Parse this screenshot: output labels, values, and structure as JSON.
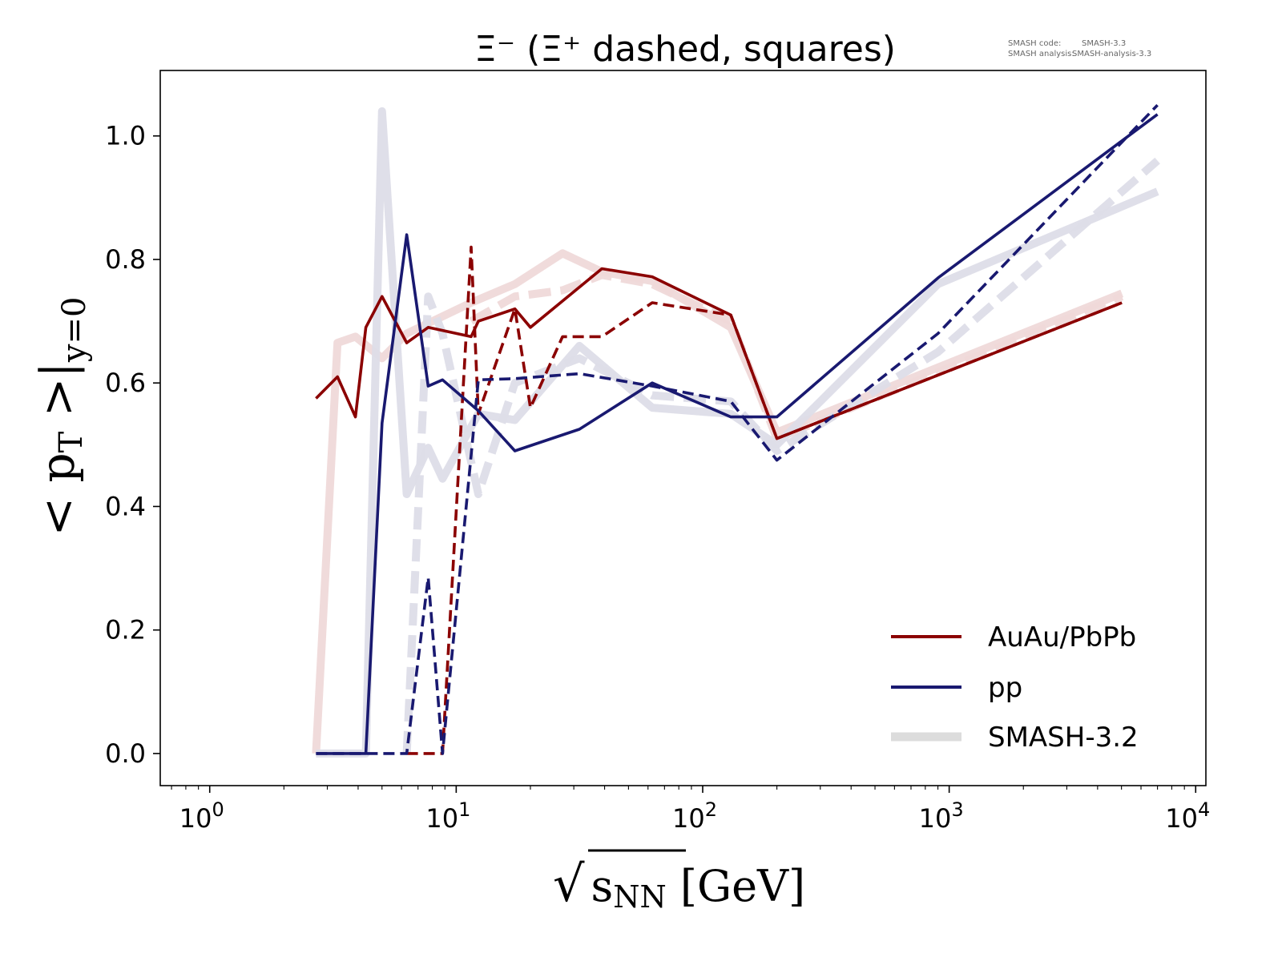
{
  "chart_data": {
    "type": "line",
    "title": "Ξ⁻ (Ξ⁺ dashed, squares)",
    "xlabel": "√s_NN [GeV]",
    "xlabel_parts": {
      "root": "√",
      "s": "s",
      "sub": "NN",
      "unit": " [GeV]"
    },
    "ylabel": "<p_T>|_{y=0}",
    "ylabel_parts": {
      "main": "< p",
      "sub1": "T",
      "mid": " >|",
      "sub2": "y=0"
    },
    "xscale": "log",
    "xlim": [
      0.63,
      11000
    ],
    "ylim": [
      -0.052,
      1.106
    ],
    "x_ticks": [
      {
        "base": "10",
        "exp": "0",
        "value": 1
      },
      {
        "base": "10",
        "exp": "1",
        "value": 10
      },
      {
        "base": "10",
        "exp": "2",
        "value": 100
      },
      {
        "base": "10",
        "exp": "3",
        "value": 1000
      },
      {
        "base": "10",
        "exp": "4",
        "value": 10000
      }
    ],
    "y_ticks": [
      "0.0",
      "0.2",
      "0.4",
      "0.6",
      "0.8",
      "1.0"
    ],
    "grid": false,
    "legend_placement": "lower-right",
    "legend": [
      {
        "label": "AuAu/PbPb",
        "color": "#8b0000",
        "style": "solid"
      },
      {
        "label": "pp",
        "color": "#191970",
        "style": "solid"
      },
      {
        "label": "SMASH-3.2",
        "color": "#dcdcdc",
        "style": "thick"
      }
    ],
    "annotation": {
      "line1_key": "SMASH code:",
      "line1_val": "SMASH-3.3",
      "line2_key": "SMASH analysis:",
      "line2_val": "SMASH-analysis-3.3"
    },
    "series": [
      {
        "name": "SMASH-3.2 AuAu/PbPb Ξ⁻",
        "color": "#8b0000",
        "style": "old-solid",
        "x": [
          2.7,
          3.3,
          3.9,
          5,
          6.3,
          11.5,
          17.3,
          27,
          39,
          62.4,
          130,
          200,
          5020
        ],
        "y": [
          0,
          0.665,
          0.675,
          0.64,
          0.68,
          0.73,
          0.76,
          0.81,
          0.78,
          0.765,
          0.69,
          0.52,
          0.745
        ]
      },
      {
        "name": "SMASH-3.2 AuAu/PbPb Ξ⁺",
        "color": "#8b0000",
        "style": "old-dashed",
        "x": [
          11.5,
          17.3,
          27,
          39,
          62.4,
          130,
          200,
          5020
        ],
        "y": [
          0.7,
          0.74,
          0.75,
          0.775,
          0.76,
          0.7,
          0.51,
          0.74
        ]
      },
      {
        "name": "SMASH-3.2 pp Ξ⁻",
        "color": "#191970",
        "style": "old-solid",
        "x": [
          2.7,
          4.3,
          5,
          6.3,
          7.7,
          8.8,
          12.3,
          17.3,
          31.6,
          62.4,
          130,
          200,
          900,
          7000
        ],
        "y": [
          0,
          0,
          1.04,
          0.42,
          0.495,
          0.445,
          0.55,
          0.54,
          0.66,
          0.56,
          0.55,
          0.5,
          0.76,
          0.91
        ]
      },
      {
        "name": "SMASH-3.2 pp Ξ⁺",
        "color": "#191970",
        "style": "old-dashed",
        "x": [
          6.3,
          7.7,
          8.8,
          12.3,
          17.3,
          31.6,
          62.4,
          130,
          200,
          900,
          7000
        ],
        "y": [
          0,
          0.74,
          0.68,
          0.42,
          0.6,
          0.64,
          0.58,
          0.57,
          0.49,
          0.65,
          0.96
        ]
      },
      {
        "name": "AuAu/PbPb Ξ⁻",
        "color": "#8b0000",
        "style": "solid",
        "x": [
          2.7,
          3.3,
          3.9,
          4.3,
          5,
          6.3,
          7.7,
          11.5,
          12.3,
          17.3,
          20,
          39,
          62.4,
          130,
          200,
          5020
        ],
        "y": [
          0.575,
          0.61,
          0.545,
          0.69,
          0.74,
          0.665,
          0.69,
          0.675,
          0.7,
          0.72,
          0.69,
          0.785,
          0.772,
          0.71,
          0.51,
          0.73
        ]
      },
      {
        "name": "AuAu/PbPb Ξ⁺",
        "color": "#8b0000",
        "style": "dashed",
        "x": [
          6.3,
          7.7,
          8.8,
          11.5,
          12.3,
          17.3,
          20,
          27,
          39,
          62.4,
          130,
          200,
          5020
        ],
        "y": [
          0,
          0,
          0,
          0.82,
          0.55,
          0.72,
          0.56,
          0.675,
          0.675,
          0.73,
          0.71,
          0.51,
          0.73
        ]
      },
      {
        "name": "pp Ξ⁻",
        "color": "#191970",
        "style": "solid",
        "x": [
          2.7,
          4.3,
          5,
          6.3,
          7.7,
          8.8,
          12.3,
          17.3,
          31.6,
          62.4,
          130,
          200,
          900,
          7000
        ],
        "y": [
          0,
          0,
          0.535,
          0.84,
          0.595,
          0.605,
          0.555,
          0.49,
          0.525,
          0.6,
          0.545,
          0.545,
          0.77,
          1.035
        ]
      },
      {
        "name": "pp Ξ⁺",
        "color": "#191970",
        "style": "dashed",
        "x": [
          2.7,
          4.3,
          6.3,
          7.7,
          8.8,
          12.3,
          17.3,
          31.6,
          62.4,
          130,
          200,
          900,
          7000
        ],
        "y": [
          0,
          0,
          0,
          0.285,
          0,
          0.605,
          0.607,
          0.615,
          0.595,
          0.57,
          0.475,
          0.68,
          1.05
        ]
      }
    ]
  }
}
